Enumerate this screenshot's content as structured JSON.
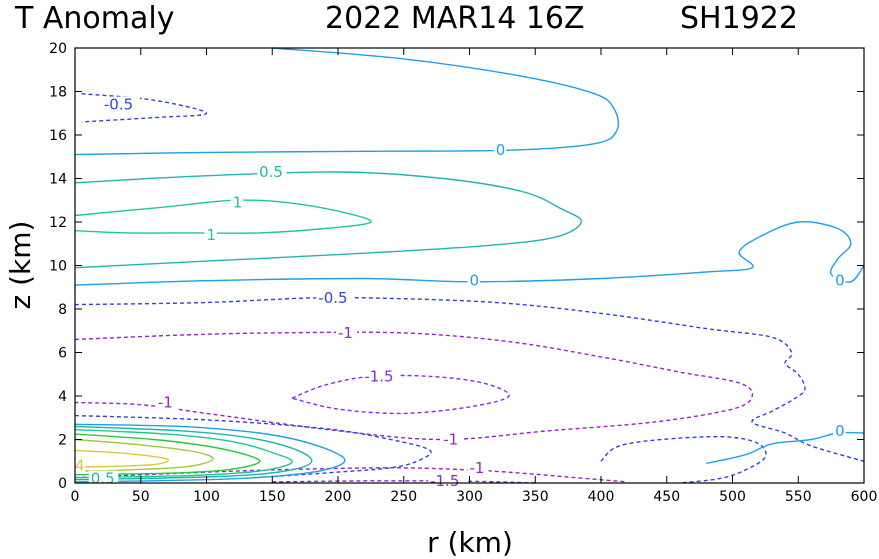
{
  "chart_data": {
    "type": "contour",
    "title": "T Anomaly",
    "timestamp": "2022 MAR14 16Z",
    "storm": "SH1922",
    "xlabel": "r (km)",
    "ylabel": "z (km)",
    "xlim": [
      0,
      600
    ],
    "ylim": [
      0,
      20
    ],
    "xticks": [
      "0",
      "50",
      "100",
      "150",
      "200",
      "250",
      "300",
      "350",
      "400",
      "450",
      "500",
      "550",
      "600"
    ],
    "yticks": [
      "0",
      "2",
      "4",
      "6",
      "8",
      "10",
      "12",
      "14",
      "16",
      "18",
      "20"
    ],
    "colors": {
      "neg_1_5": "#8a2be2",
      "neg_1": "#9a22c8",
      "neg_0_5": "#2f45d8",
      "zero": "#1ea0e6",
      "pos_0_5": "#1eb4b4",
      "pos_1": "#1ec896",
      "pos_2": "#2ac83c",
      "pos_3": "#a0c83c",
      "pos_4": "#dcc83c"
    },
    "contour_labels": [
      {
        "text": "-0.5",
        "r": 22,
        "z": 17.4,
        "color": "neg_0_5"
      },
      {
        "text": "0",
        "r": 320,
        "z": 15.3,
        "color": "zero"
      },
      {
        "text": "0.5",
        "r": 140,
        "z": 14.3,
        "color": "pos_0_5"
      },
      {
        "text": "1",
        "r": 120,
        "z": 12.9,
        "color": "pos_1"
      },
      {
        "text": "1",
        "r": 100,
        "z": 11.4,
        "color": "pos_1"
      },
      {
        "text": "0",
        "r": 300,
        "z": 9.3,
        "color": "zero"
      },
      {
        "text": "0",
        "r": 578,
        "z": 9.3,
        "color": "zero"
      },
      {
        "text": "-0.5",
        "r": 185,
        "z": 8.5,
        "color": "neg_0_5"
      },
      {
        "text": "-1",
        "r": 200,
        "z": 6.9,
        "color": "neg_1"
      },
      {
        "text": "-1.5",
        "r": 220,
        "z": 4.9,
        "color": "neg_1_5"
      },
      {
        "text": "-1",
        "r": 63,
        "z": 3.7,
        "color": "neg_1"
      },
      {
        "text": "-1",
        "r": 280,
        "z": 2.0,
        "color": "neg_1"
      },
      {
        "text": "0",
        "r": 578,
        "z": 2.4,
        "color": "zero"
      },
      {
        "text": "-1",
        "r": 300,
        "z": 0.7,
        "color": "neg_1"
      },
      {
        "text": "-1.5",
        "r": 270,
        "z": 0.1,
        "color": "neg_1_5"
      },
      {
        "text": "4",
        "r": 0,
        "z": 0.8,
        "color": "pos_4"
      },
      {
        "text": "0.5",
        "r": 12,
        "z": 0.2,
        "color": "pos_0_5"
      }
    ],
    "contours": [
      {
        "level": "-0.5",
        "dashed": true,
        "color": "neg_0_5",
        "points": [
          [
            5,
            17.9
          ],
          [
            60,
            17.6
          ],
          [
            100,
            17.0
          ],
          [
            60,
            16.8
          ],
          [
            5,
            16.6
          ]
        ]
      },
      {
        "level": "0",
        "dashed": false,
        "color": "zero",
        "points": [
          [
            150,
            20
          ],
          [
            250,
            19.5
          ],
          [
            340,
            18.7
          ],
          [
            395,
            17.9
          ],
          [
            410,
            17.2
          ],
          [
            412,
            16.2
          ],
          [
            395,
            15.6
          ],
          [
            330,
            15.3
          ],
          [
            220,
            15.25
          ],
          [
            100,
            15.2
          ],
          [
            0,
            15.1
          ]
        ]
      },
      {
        "level": "0.5",
        "dashed": false,
        "color": "pos_0_5",
        "points": [
          [
            0,
            13.8
          ],
          [
            90,
            14.1
          ],
          [
            200,
            14.3
          ],
          [
            280,
            14.0
          ],
          [
            340,
            13.4
          ],
          [
            370,
            12.6
          ],
          [
            385,
            12.0
          ],
          [
            365,
            11.3
          ],
          [
            310,
            10.9
          ],
          [
            200,
            10.5
          ],
          [
            100,
            10.2
          ],
          [
            0,
            9.9
          ]
        ]
      },
      {
        "level": "1",
        "dashed": false,
        "color": "pos_1",
        "points": [
          [
            0,
            12.3
          ],
          [
            70,
            12.7
          ],
          [
            120,
            13.0
          ],
          [
            160,
            12.9
          ],
          [
            200,
            12.5
          ],
          [
            225,
            12.0
          ],
          [
            190,
            11.7
          ],
          [
            140,
            11.5
          ],
          [
            90,
            11.5
          ],
          [
            40,
            11.5
          ],
          [
            0,
            11.6
          ]
        ]
      },
      {
        "level": "0",
        "dashed": false,
        "color": "zero",
        "points": [
          [
            0,
            9.1
          ],
          [
            100,
            9.3
          ],
          [
            220,
            9.4
          ],
          [
            300,
            9.25
          ],
          [
            400,
            9.4
          ],
          [
            480,
            9.7
          ],
          [
            515,
            9.9
          ],
          [
            505,
            10.6
          ],
          [
            520,
            11.3
          ],
          [
            550,
            12.0
          ],
          [
            580,
            11.7
          ],
          [
            590,
            11.0
          ],
          [
            580,
            10.3
          ],
          [
            575,
            9.6
          ],
          [
            590,
            9.25
          ],
          [
            600,
            10.0
          ]
        ]
      },
      {
        "level": "-0.5",
        "dashed": true,
        "color": "neg_0_5",
        "points": [
          [
            0,
            8.2
          ],
          [
            100,
            8.3
          ],
          [
            175,
            8.5
          ],
          [
            230,
            8.5
          ],
          [
            320,
            8.3
          ],
          [
            400,
            7.8
          ],
          [
            480,
            7.1
          ],
          [
            530,
            6.7
          ],
          [
            545,
            6.0
          ],
          [
            540,
            5.5
          ],
          [
            550,
            5.0
          ],
          [
            555,
            4.3
          ],
          [
            545,
            3.8
          ],
          [
            530,
            3.3
          ],
          [
            515,
            2.8
          ],
          [
            540,
            2.3
          ],
          [
            560,
            1.7
          ],
          [
            600,
            1.0
          ]
        ]
      },
      {
        "level": "-1",
        "dashed": true,
        "color": "neg_1",
        "points": [
          [
            0,
            6.6
          ],
          [
            80,
            6.8
          ],
          [
            150,
            6.9
          ],
          [
            250,
            6.9
          ],
          [
            330,
            6.5
          ],
          [
            400,
            5.8
          ],
          [
            460,
            5.1
          ],
          [
            505,
            4.6
          ],
          [
            515,
            4.0
          ],
          [
            500,
            3.4
          ],
          [
            440,
            2.8
          ],
          [
            360,
            2.4
          ],
          [
            280,
            2.0
          ],
          [
            200,
            2.4
          ],
          [
            100,
            3.2
          ],
          [
            50,
            3.6
          ],
          [
            0,
            3.7
          ]
        ]
      },
      {
        "level": "-1.5",
        "dashed": true,
        "color": "neg_1_5",
        "points": [
          [
            165,
            3.9
          ],
          [
            190,
            4.5
          ],
          [
            225,
            4.9
          ],
          [
            270,
            4.9
          ],
          [
            310,
            4.6
          ],
          [
            330,
            4.0
          ],
          [
            300,
            3.5
          ],
          [
            250,
            3.2
          ],
          [
            200,
            3.4
          ],
          [
            165,
            3.9
          ]
        ]
      },
      {
        "level": "-0.5",
        "dashed": true,
        "color": "neg_0_5",
        "points": [
          [
            0,
            3.1
          ],
          [
            100,
            2.9
          ],
          [
            190,
            2.5
          ],
          [
            240,
            2.0
          ],
          [
            270,
            1.5
          ],
          [
            260,
            1.0
          ],
          [
            240,
            0.7
          ],
          [
            200,
            0.5
          ],
          [
            150,
            0.3
          ]
        ]
      },
      {
        "level": "-0.5",
        "dashed": true,
        "color": "neg_0_5",
        "points": [
          [
            400,
            1.0
          ],
          [
            410,
            1.6
          ],
          [
            430,
            1.9
          ],
          [
            470,
            2.1
          ],
          [
            500,
            2.1
          ],
          [
            520,
            1.8
          ],
          [
            525,
            1.2
          ],
          [
            510,
            0.6
          ],
          [
            490,
            0.2
          ],
          [
            460,
            0.0
          ]
        ]
      },
      {
        "level": "-1",
        "dashed": true,
        "color": "neg_1",
        "points": [
          [
            0,
            0.25
          ],
          [
            80,
            0.45
          ],
          [
            150,
            0.6
          ],
          [
            240,
            0.7
          ],
          [
            300,
            0.6
          ],
          [
            340,
            0.45
          ],
          [
            380,
            0.25
          ],
          [
            420,
            0.05
          ]
        ]
      },
      {
        "level": "-1.5",
        "dashed": true,
        "color": "neg_1_5",
        "points": [
          [
            150,
            0.05
          ],
          [
            230,
            0.1
          ],
          [
            300,
            0.08
          ],
          [
            350,
            0.0
          ]
        ]
      },
      {
        "level": "0",
        "dashed": false,
        "color": "zero",
        "points": [
          [
            480,
            0.9
          ],
          [
            510,
            1.3
          ],
          [
            530,
            1.8
          ],
          [
            560,
            2.0
          ],
          [
            580,
            2.3
          ],
          [
            600,
            2.3
          ]
        ]
      },
      {
        "level": "0",
        "dashed": false,
        "color": "zero",
        "points": [
          [
            0,
            2.7
          ],
          [
            80,
            2.6
          ],
          [
            140,
            2.3
          ],
          [
            180,
            1.8
          ],
          [
            205,
            1.1
          ],
          [
            190,
            0.6
          ],
          [
            150,
            0.3
          ],
          [
            100,
            0.15
          ],
          [
            0,
            0.05
          ]
        ]
      },
      {
        "level": "0.5",
        "dashed": false,
        "color": "pos_0_5",
        "points": [
          [
            0,
            2.6
          ],
          [
            80,
            2.4
          ],
          [
            130,
            2.1
          ],
          [
            165,
            1.6
          ],
          [
            180,
            1.0
          ],
          [
            160,
            0.55
          ],
          [
            110,
            0.3
          ],
          [
            0,
            0.15
          ]
        ]
      },
      {
        "level": "1",
        "dashed": false,
        "color": "pos_1",
        "points": [
          [
            0,
            2.45
          ],
          [
            70,
            2.25
          ],
          [
            120,
            1.9
          ],
          [
            150,
            1.4
          ],
          [
            165,
            0.95
          ],
          [
            140,
            0.55
          ],
          [
            90,
            0.35
          ],
          [
            0,
            0.25
          ]
        ]
      },
      {
        "level": "2",
        "dashed": false,
        "color": "pos_2",
        "points": [
          [
            0,
            2.25
          ],
          [
            60,
            2.0
          ],
          [
            100,
            1.7
          ],
          [
            130,
            1.3
          ],
          [
            140,
            0.95
          ],
          [
            115,
            0.6
          ],
          [
            70,
            0.45
          ],
          [
            0,
            0.38
          ]
        ]
      },
      {
        "level": "3",
        "dashed": false,
        "color": "pos_3",
        "points": [
          [
            0,
            2.0
          ],
          [
            50,
            1.75
          ],
          [
            90,
            1.45
          ],
          [
            105,
            1.1
          ],
          [
            85,
            0.75
          ],
          [
            40,
            0.6
          ],
          [
            0,
            0.55
          ]
        ]
      },
      {
        "level": "4",
        "dashed": false,
        "color": "pos_4",
        "points": [
          [
            0,
            1.5
          ],
          [
            40,
            1.35
          ],
          [
            70,
            1.1
          ],
          [
            60,
            0.85
          ],
          [
            20,
            0.75
          ],
          [
            0,
            0.75
          ]
        ]
      }
    ]
  }
}
